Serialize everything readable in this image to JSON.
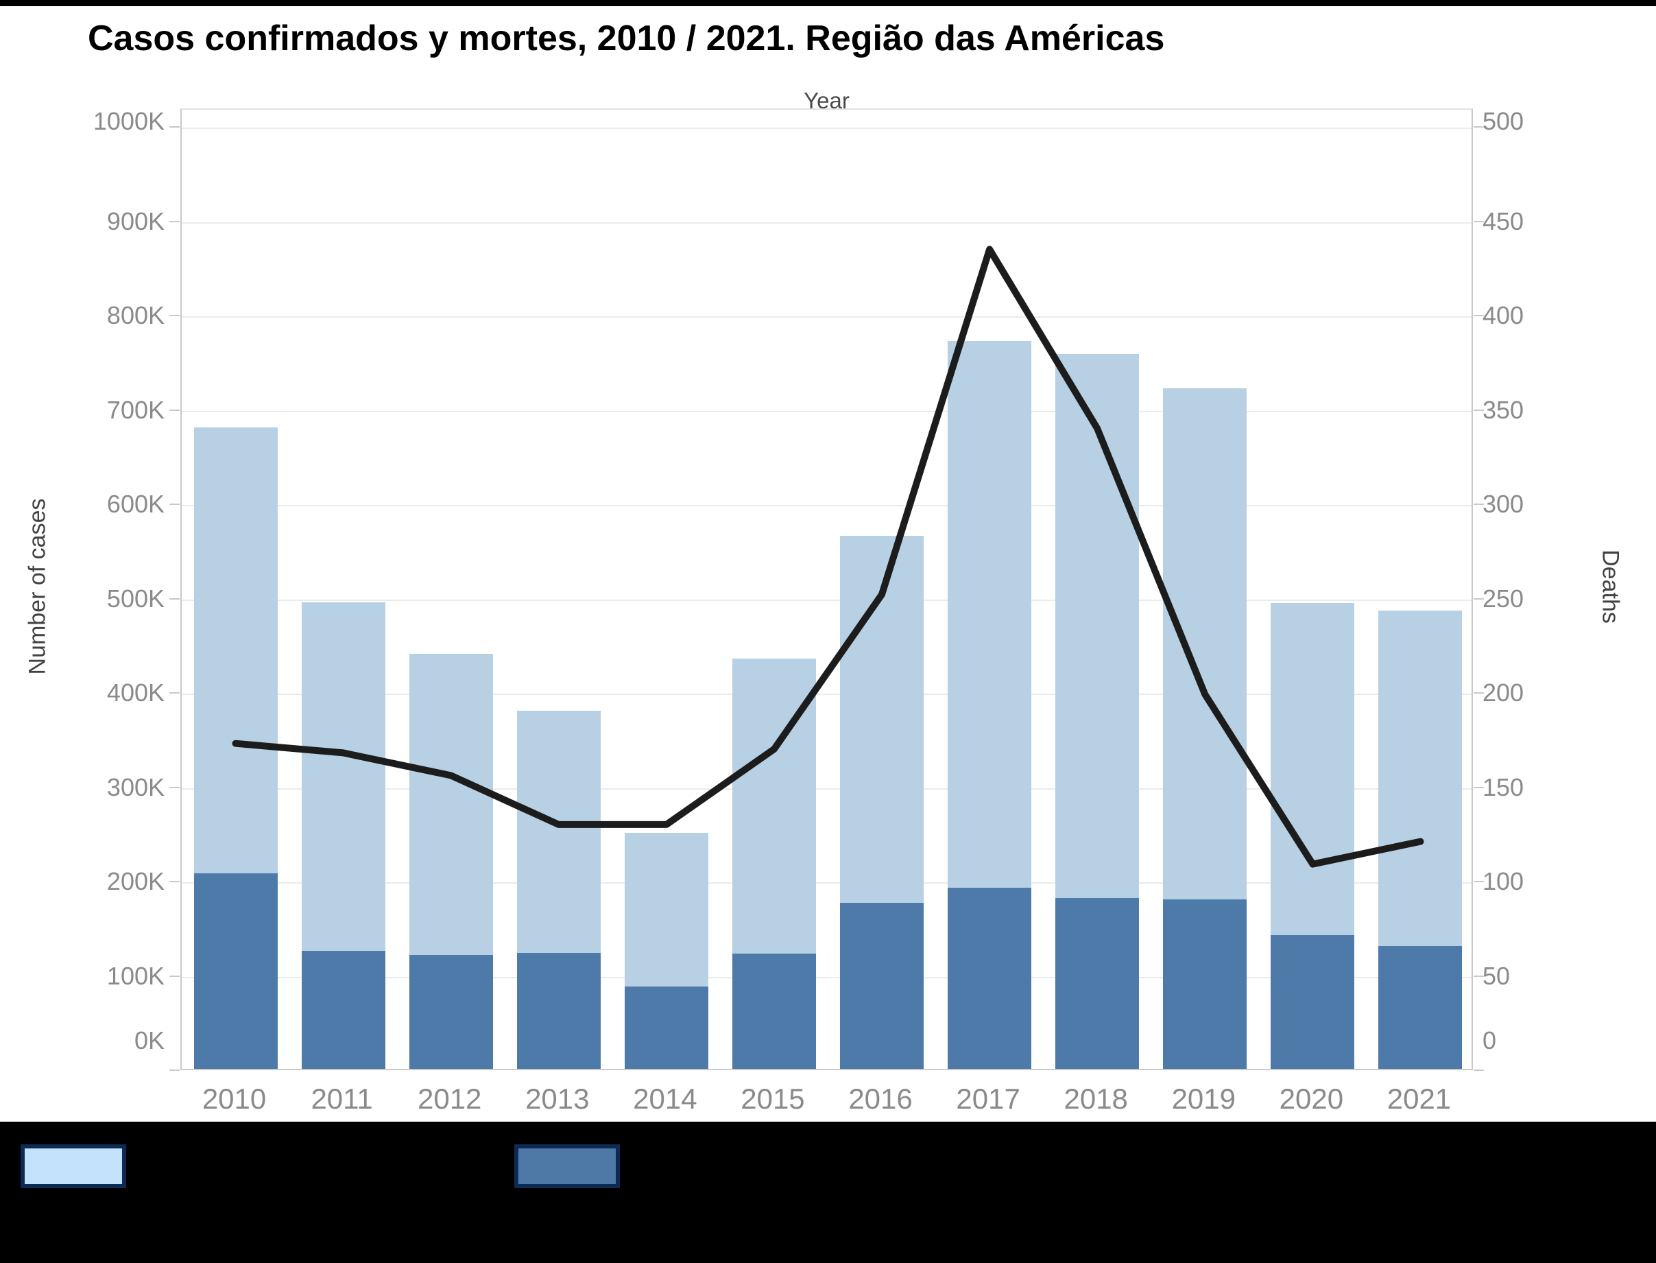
{
  "header": {
    "title": "Casos confirmados y mortes, 2010 / 2021. Região das Américas",
    "top_axis_label": "Year"
  },
  "chart_data": {
    "type": "combo-bar-line",
    "categories": [
      "2010",
      "2011",
      "2012",
      "2013",
      "2014",
      "2015",
      "2016",
      "2017",
      "2018",
      "2019",
      "2020",
      "2021"
    ],
    "series": [
      {
        "name": "cases-total-bar",
        "type": "bar",
        "color": "#b7d0e3",
        "axis": "left",
        "values_thousands": [
          680,
          495,
          440,
          380,
          250,
          435,
          565,
          772,
          758,
          722,
          494,
          486
        ]
      },
      {
        "name": "cases-confirmed-bar",
        "type": "bar",
        "color": "#4e7aa9",
        "axis": "left",
        "values_thousands": [
          207,
          125,
          121,
          123,
          87,
          122,
          176,
          192,
          181,
          180,
          142,
          130
        ]
      },
      {
        "name": "deaths-line",
        "type": "line",
        "color": "#1c1c1c",
        "axis": "right",
        "values": [
          174,
          169,
          157,
          131,
          131,
          171,
          253,
          436,
          341,
          200,
          110,
          122
        ]
      }
    ],
    "y_left": {
      "title": "Number of cases",
      "tick_labels": [
        "0K",
        "100K",
        "200K",
        "300K",
        "400K",
        "500K",
        "600K",
        "700K",
        "800K",
        "900K",
        "1000K"
      ],
      "tick_values_thousands": [
        0,
        100,
        200,
        300,
        400,
        500,
        600,
        700,
        800,
        900,
        1000
      ],
      "range_thousands": [
        0,
        1020
      ]
    },
    "y_right": {
      "title": "Deaths",
      "tick_labels": [
        "0",
        "50",
        "100",
        "150",
        "200",
        "250",
        "300",
        "350",
        "400",
        "450",
        "500"
      ],
      "tick_values": [
        0,
        50,
        100,
        150,
        200,
        250,
        300,
        350,
        400,
        450,
        500
      ],
      "range": [
        0,
        510
      ]
    },
    "x_axis": {
      "title": "Year"
    },
    "grid": "horizontal",
    "legend_position": "bottom"
  },
  "legend": {
    "items": [
      {
        "label": "",
        "swatch_color": "#c4e2fb",
        "border_color": "#0d2b52"
      },
      {
        "label": "",
        "swatch_color": "#4e79a7",
        "border_color": "#0d2b52"
      }
    ]
  }
}
